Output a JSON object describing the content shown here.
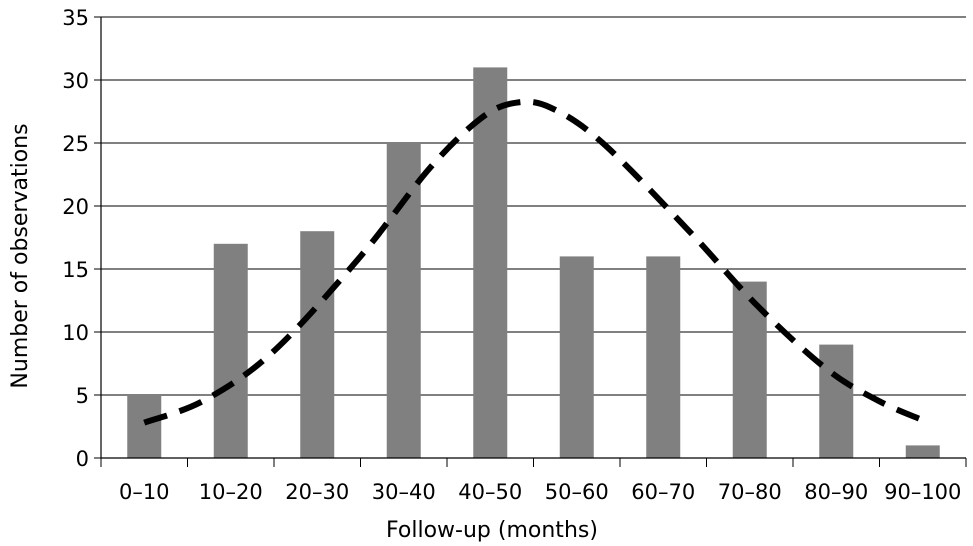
{
  "chart_data": {
    "type": "bar",
    "title": "",
    "xlabel": "Follow-up (months)",
    "ylabel": "Number of observations",
    "categories": [
      "0–10",
      "10–20",
      "20–30",
      "30–40",
      "40–50",
      "50–60",
      "60–70",
      "70–80",
      "80–90",
      "90–100"
    ],
    "values": [
      5,
      17,
      18,
      25,
      31,
      16,
      16,
      14,
      9,
      1
    ],
    "ylim": [
      0,
      35
    ],
    "yticks": [
      "0",
      "5",
      "10",
      "15",
      "20",
      "25",
      "30",
      "35"
    ],
    "grid": true,
    "legend": "none",
    "bar_color": "#808080",
    "curve": {
      "style": "dashed",
      "color": "#000000",
      "points": [
        [
          0.5,
          2.8
        ],
        [
          1.2,
          4.6
        ],
        [
          2,
          8.5
        ],
        [
          3,
          16
        ],
        [
          3.8,
          23
        ],
        [
          4.4,
          27
        ],
        [
          4.8,
          28.2
        ],
        [
          5.2,
          27.8
        ],
        [
          5.8,
          25
        ],
        [
          6.8,
          18
        ],
        [
          7.6,
          12
        ],
        [
          8.4,
          7
        ],
        [
          9,
          4.5
        ],
        [
          9.5,
          3
        ]
      ]
    }
  }
}
